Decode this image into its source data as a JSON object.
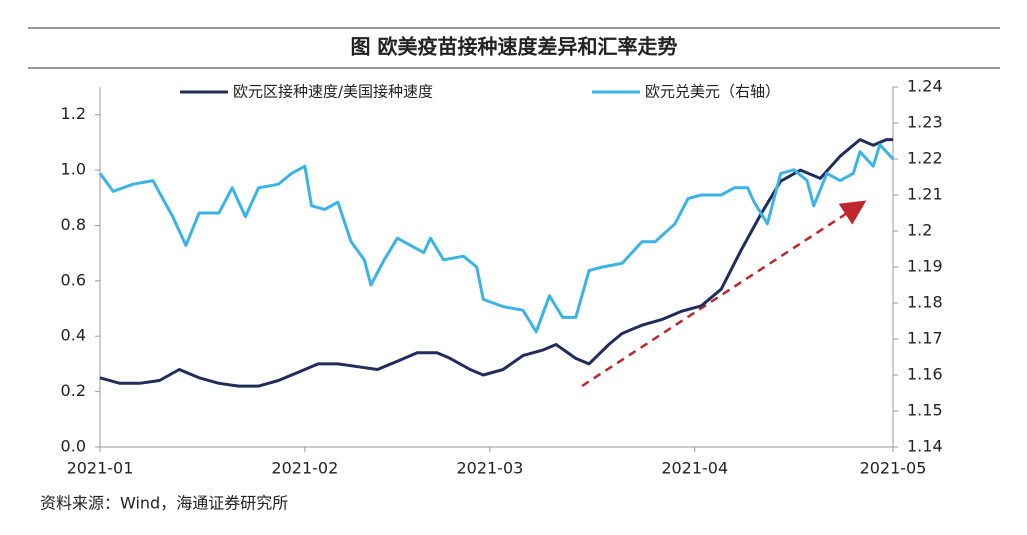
{
  "chart_data": {
    "type": "line",
    "title": "图 欧美疫苗接种速度差异和汇率走势",
    "source": "资料来源：Wind，海通证券研究所",
    "xlim": [
      0,
      120
    ],
    "xticks": [
      {
        "value": 0,
        "label": "2021-01"
      },
      {
        "value": 31,
        "label": "2021-02"
      },
      {
        "value": 59,
        "label": "2021-03"
      },
      {
        "value": 90,
        "label": "2021-04"
      },
      {
        "value": 120,
        "label": "2021-05"
      }
    ],
    "ylim": [
      0,
      1.3
    ],
    "yticks": [
      {
        "value": 0,
        "label": "0.0"
      },
      0.2,
      0.4,
      0.6,
      0.8,
      {
        "value": 1,
        "label": "1.0"
      },
      1.2
    ],
    "y2lim": [
      1.14,
      1.24
    ],
    "y2ticks": [
      1.14,
      1.15,
      1.16,
      1.17,
      1.18,
      1.19,
      1.2,
      1.21,
      1.22,
      1.23,
      1.24
    ],
    "series": [
      {
        "name": "欧元区接种速度/美国接种速度",
        "color": "#1f2d5c",
        "axis": "y",
        "x": [
          0,
          3,
          6,
          9,
          12,
          15,
          18,
          21,
          24,
          27,
          30,
          33,
          36,
          39,
          42,
          45,
          48,
          51,
          53,
          56,
          58,
          61,
          64,
          67,
          69,
          72,
          74,
          77,
          79,
          82,
          85,
          88,
          91,
          94,
          97,
          100,
          103,
          106,
          109,
          112,
          115,
          117,
          119,
          120
        ],
        "values": [
          0.25,
          0.23,
          0.23,
          0.24,
          0.28,
          0.25,
          0.23,
          0.22,
          0.22,
          0.24,
          0.27,
          0.3,
          0.3,
          0.29,
          0.28,
          0.31,
          0.34,
          0.34,
          0.32,
          0.28,
          0.26,
          0.28,
          0.33,
          0.35,
          0.37,
          0.32,
          0.3,
          0.37,
          0.41,
          0.44,
          0.46,
          0.49,
          0.51,
          0.57,
          0.71,
          0.84,
          0.96,
          1.0,
          0.97,
          1.05,
          1.11,
          1.09,
          1.11,
          1.11
        ]
      },
      {
        "name": "欧元兑美元（右轴）",
        "color": "#3ab4e6",
        "axis": "y2",
        "x": [
          0,
          2,
          5,
          8,
          11,
          13,
          15,
          18,
          20,
          22,
          24,
          27,
          29,
          31,
          32,
          34,
          36,
          38,
          40,
          41,
          43,
          45,
          47,
          49,
          50,
          52,
          55,
          57,
          58,
          61,
          64,
          66,
          68,
          70,
          72,
          74,
          76,
          79,
          82,
          84,
          87,
          89,
          91,
          94,
          96,
          98,
          99,
          101,
          103,
          105,
          107,
          108,
          110,
          112,
          114,
          115,
          117,
          118,
          120
        ],
        "values": [
          1.216,
          1.211,
          1.213,
          1.214,
          1.204,
          1.196,
          1.205,
          1.205,
          1.212,
          1.204,
          1.212,
          1.213,
          1.216,
          1.218,
          1.207,
          1.206,
          1.208,
          1.197,
          1.192,
          1.185,
          1.192,
          1.198,
          1.196,
          1.194,
          1.198,
          1.192,
          1.193,
          1.19,
          1.181,
          1.179,
          1.178,
          1.172,
          1.182,
          1.176,
          1.176,
          1.189,
          1.19,
          1.191,
          1.197,
          1.197,
          1.202,
          1.209,
          1.21,
          1.21,
          1.212,
          1.212,
          1.208,
          1.202,
          1.216,
          1.217,
          1.214,
          1.207,
          1.216,
          1.214,
          1.216,
          1.222,
          1.218,
          1.224,
          1.22
        ]
      }
    ]
  }
}
